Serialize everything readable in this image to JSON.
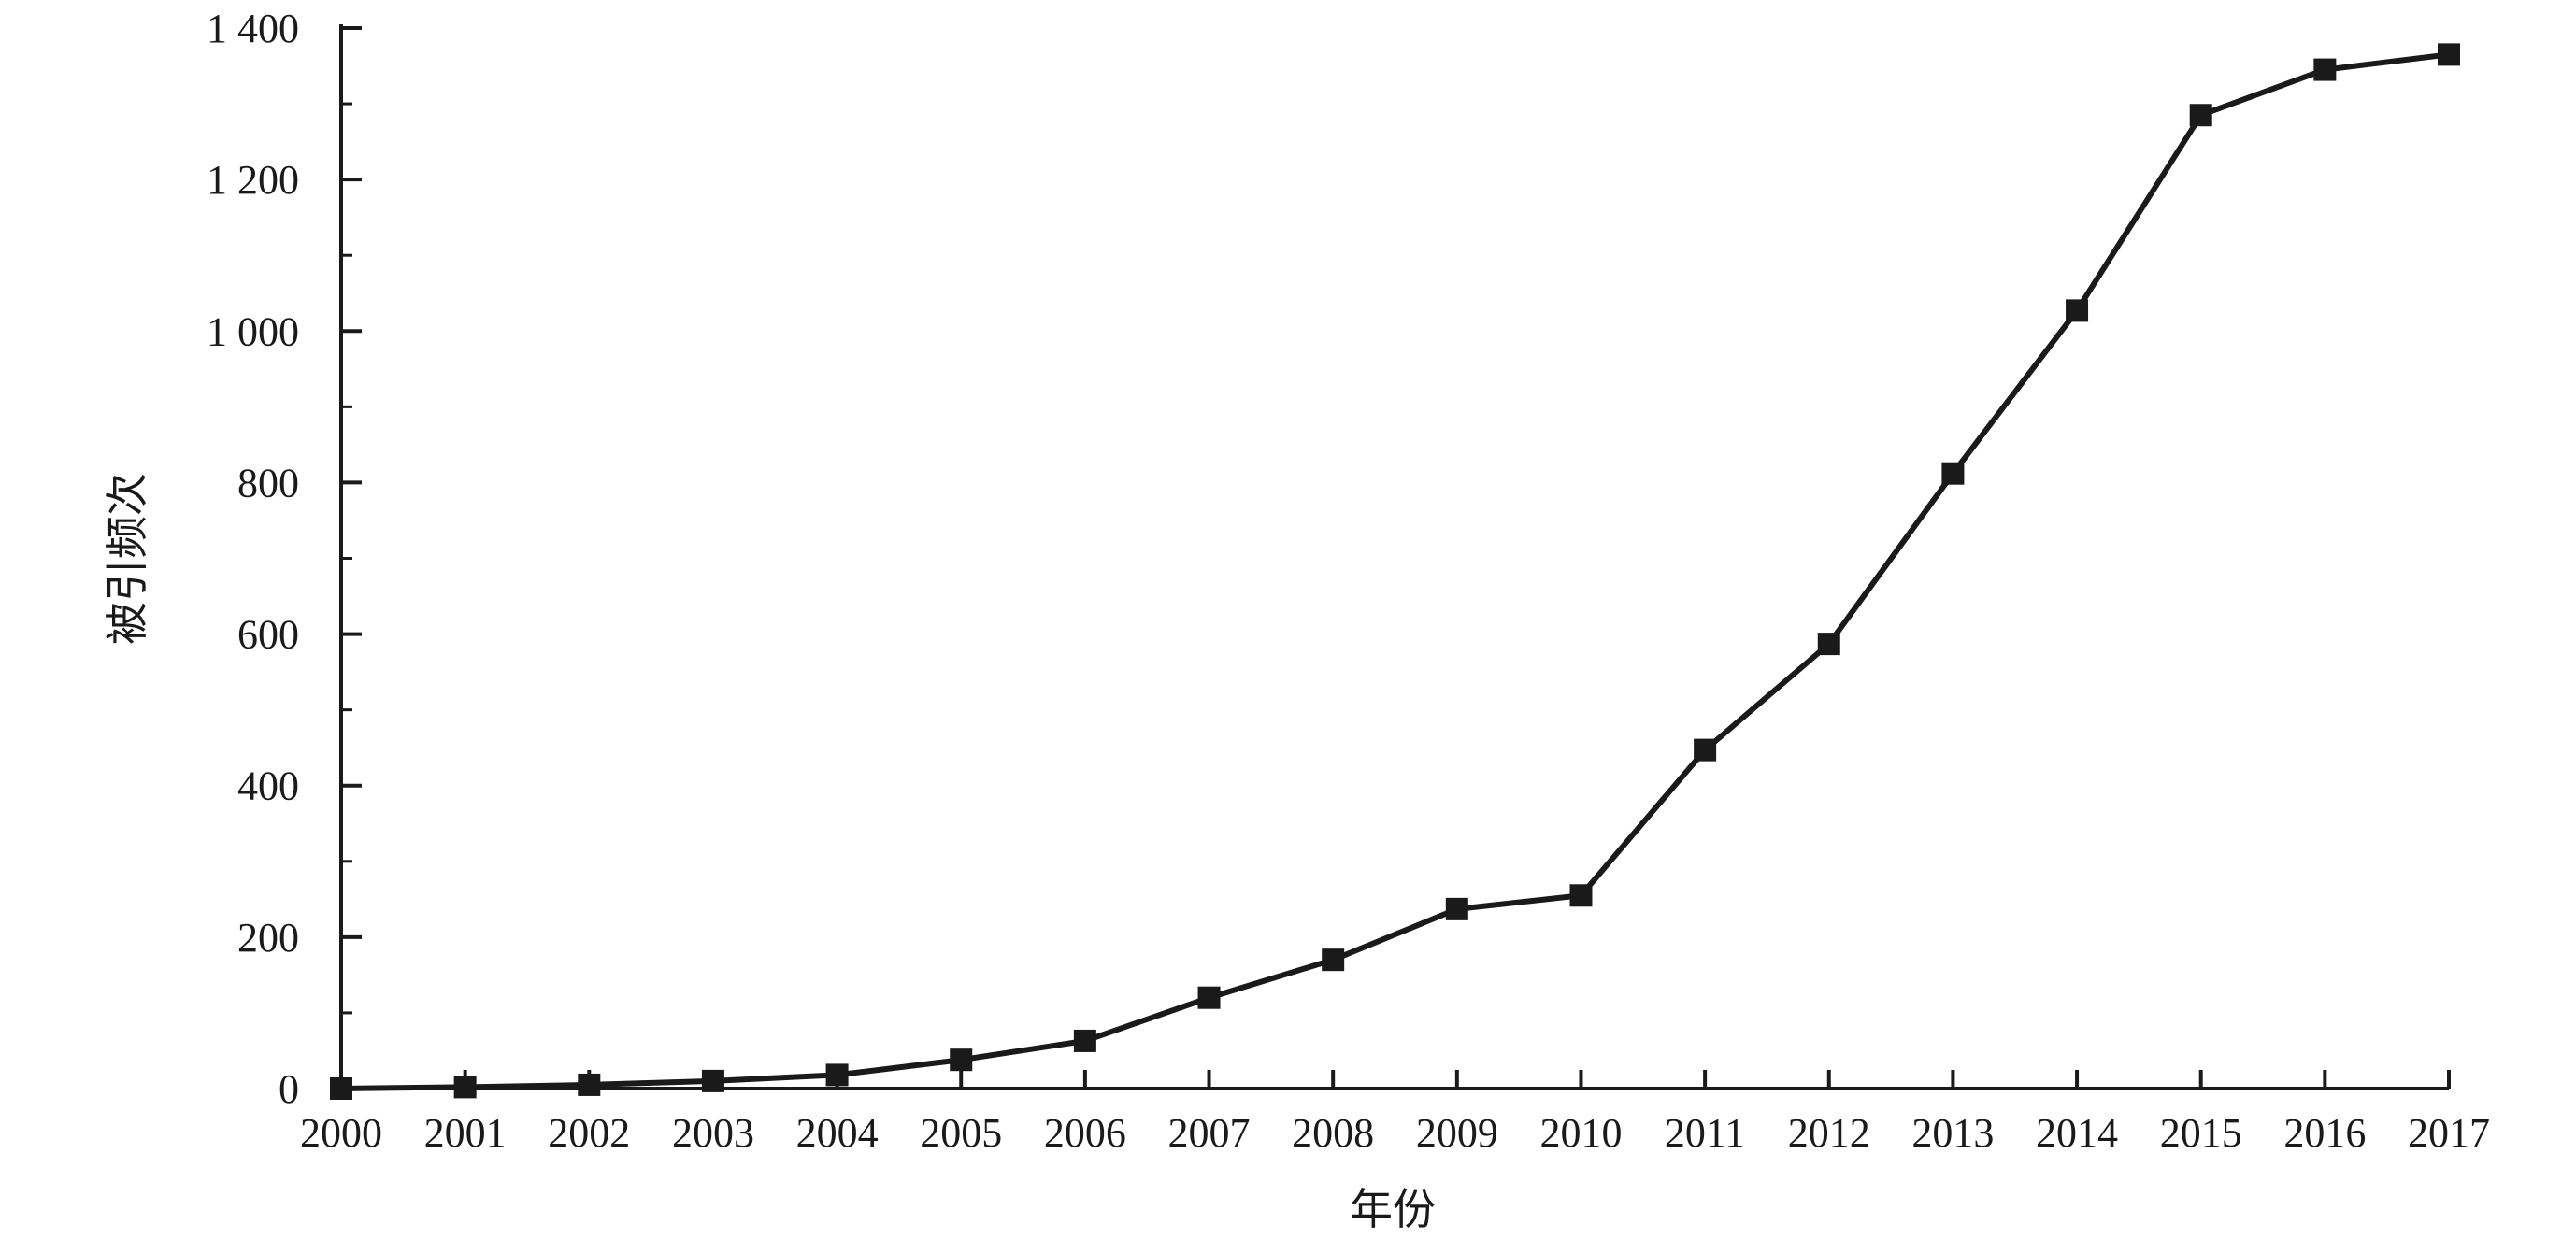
{
  "chart_data": {
    "type": "line",
    "title": "",
    "xlabel": "年份",
    "ylabel": "被引频次",
    "x": [
      2000,
      2001,
      2002,
      2003,
      2004,
      2005,
      2006,
      2007,
      2008,
      2009,
      2010,
      2011,
      2012,
      2013,
      2014,
      2015,
      2016,
      2017
    ],
    "x_tick_labels": [
      "2000",
      "2001",
      "2002",
      "2003",
      "2004",
      "2005",
      "2006",
      "2007",
      "2008",
      "2009",
      "2010",
      "2011",
      "2012",
      "2013",
      "2014",
      "2015",
      "2016",
      "2017"
    ],
    "series": [
      {
        "values": [
          0,
          2,
          5,
          10,
          18,
          38,
          63,
          120,
          170,
          237,
          255,
          447,
          587,
          812,
          1027,
          1285,
          1345,
          1365
        ],
        "marker": "square",
        "color": "#1a1a1a"
      }
    ],
    "ylim": [
      0,
      1400
    ],
    "y_ticks": [
      0,
      200,
      400,
      600,
      800,
      1000,
      1200,
      1400
    ],
    "y_tick_labels": [
      "0",
      "200",
      "400",
      "600",
      "800",
      "1 000",
      "1 200",
      "1 400"
    ],
    "grid": false,
    "legend": "none"
  }
}
